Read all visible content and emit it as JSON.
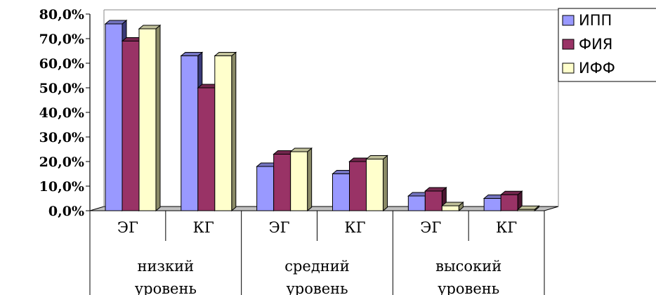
{
  "chart_data": {
    "type": "bar",
    "variant": "3d-clustered",
    "y_tick_labels": [
      "0,0%",
      "10,0%",
      "20,0%",
      "30,0%",
      "40,0%",
      "50,0%",
      "60,0%",
      "70,0%",
      "80,0%"
    ],
    "ylim": [
      0,
      80
    ],
    "groups": [
      {
        "label": "низкий уровень",
        "categories": [
          "ЭГ",
          "КГ"
        ]
      },
      {
        "label": "средний уровень",
        "categories": [
          "ЭГ",
          "КГ"
        ]
      },
      {
        "label": "высокий уровень",
        "categories": [
          "ЭГ",
          "КГ"
        ]
      }
    ],
    "series": [
      {
        "name": "ИПП",
        "color": "#9999ff",
        "side_color": "#3a3a78",
        "values": [
          76,
          63,
          18,
          15,
          6,
          5
        ]
      },
      {
        "name": "ФИЯ",
        "color": "#993366",
        "side_color": "#4a1630",
        "values": [
          69,
          50,
          23,
          20,
          8,
          6.5
        ]
      },
      {
        "name": "ИФФ",
        "color": "#ffffcc",
        "side_color": "#8a8a66",
        "values": [
          74,
          63,
          24,
          21,
          2,
          0.5
        ]
      }
    ],
    "legend_position": "top-right",
    "grid": false
  }
}
